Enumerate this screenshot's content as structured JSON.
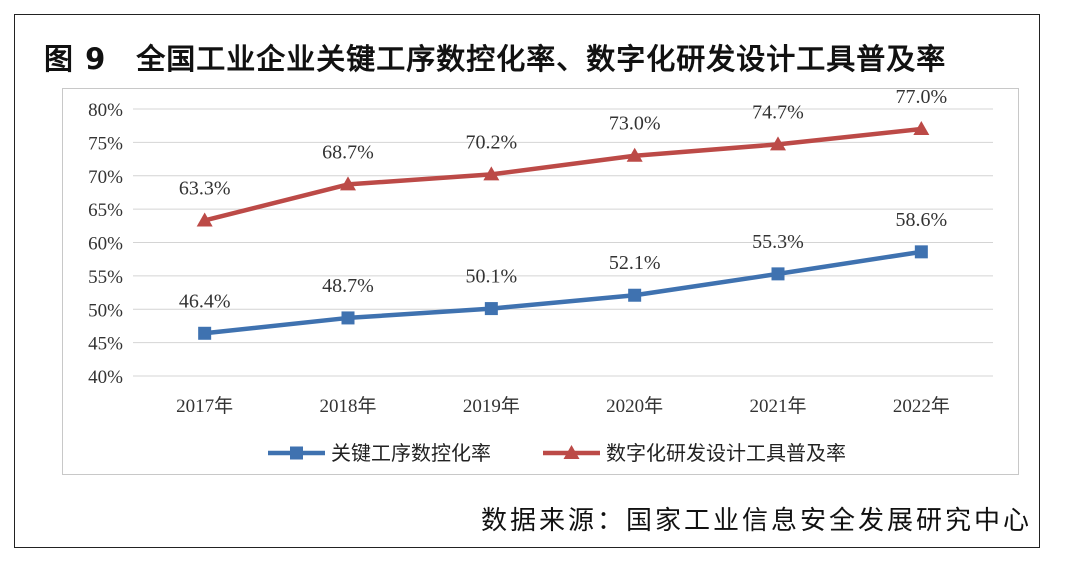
{
  "title": "图 9　全国工业企业关键工序数控化率、数字化研发设计工具普及率",
  "source": "数据来源：国家工业信息安全发展研究中心",
  "chart_data": {
    "type": "line",
    "categories": [
      "2017年",
      "2018年",
      "2019年",
      "2020年",
      "2021年",
      "2022年"
    ],
    "ylim": [
      40,
      80
    ],
    "yticks": [
      40,
      45,
      50,
      55,
      60,
      65,
      70,
      75,
      80
    ],
    "ytick_labels": [
      "40%",
      "45%",
      "50%",
      "55%",
      "60%",
      "65%",
      "70%",
      "75%",
      "80%"
    ],
    "grid": true,
    "legend_position": "bottom",
    "series": [
      {
        "name": "关键工序数控化率",
        "values": [
          46.4,
          48.7,
          50.1,
          52.1,
          55.3,
          58.6
        ],
        "labels": [
          "46.4%",
          "48.7%",
          "50.1%",
          "52.1%",
          "55.3%",
          "58.6%"
        ],
        "color": "#3f72b0",
        "marker": "square"
      },
      {
        "name": "数字化研发设计工具普及率",
        "values": [
          63.3,
          68.7,
          70.2,
          73.0,
          74.7,
          77.0
        ],
        "labels": [
          "63.3%",
          "68.7%",
          "70.2%",
          "73.0%",
          "74.7%",
          "77.0%"
        ],
        "color": "#bc4a47",
        "marker": "triangle"
      }
    ]
  }
}
